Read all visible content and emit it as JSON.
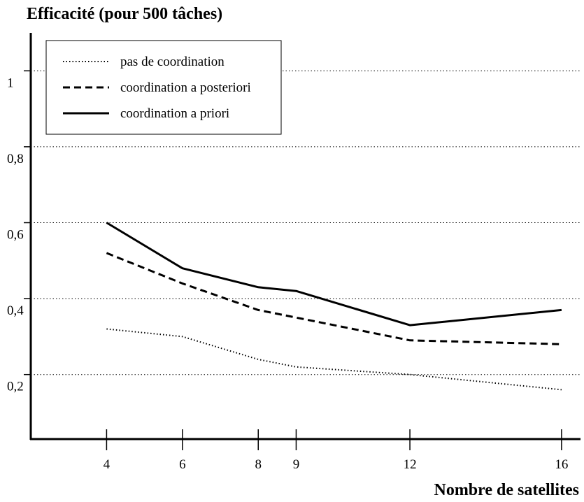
{
  "chart_data": {
    "type": "line",
    "title": "Efficacité (pour 500 tâches)",
    "xlabel": "Nombre de satellites",
    "ylabel": "",
    "x": [
      4,
      6,
      8,
      9,
      12,
      16
    ],
    "xticks": [
      4,
      6,
      8,
      9,
      12,
      16
    ],
    "xlim": [
      2,
      16.5
    ],
    "ylim": [
      0.03,
      1.1
    ],
    "yticks": [
      {
        "value": 0.2,
        "label": "0,2"
      },
      {
        "value": 0.4,
        "label": "0,4"
      },
      {
        "value": 0.6,
        "label": "0,6"
      },
      {
        "value": 0.8,
        "label": "0,8"
      },
      {
        "value": 1.0,
        "label": "1"
      }
    ],
    "grid": true,
    "grid_style": "dotted horizontal",
    "legend_position": "top-left",
    "series": [
      {
        "name": "pas de coordination",
        "style": "dotted",
        "values": [
          0.32,
          0.3,
          0.24,
          0.22,
          0.2,
          0.16
        ]
      },
      {
        "name": "coordination a posteriori",
        "style": "dashed",
        "values": [
          0.52,
          0.44,
          0.37,
          0.35,
          0.29,
          0.28
        ]
      },
      {
        "name": "coordination a priori",
        "style": "solid",
        "values": [
          0.6,
          0.48,
          0.43,
          0.42,
          0.33,
          0.37
        ]
      }
    ],
    "colors": {
      "line": "#000000",
      "background": "#ffffff"
    }
  }
}
